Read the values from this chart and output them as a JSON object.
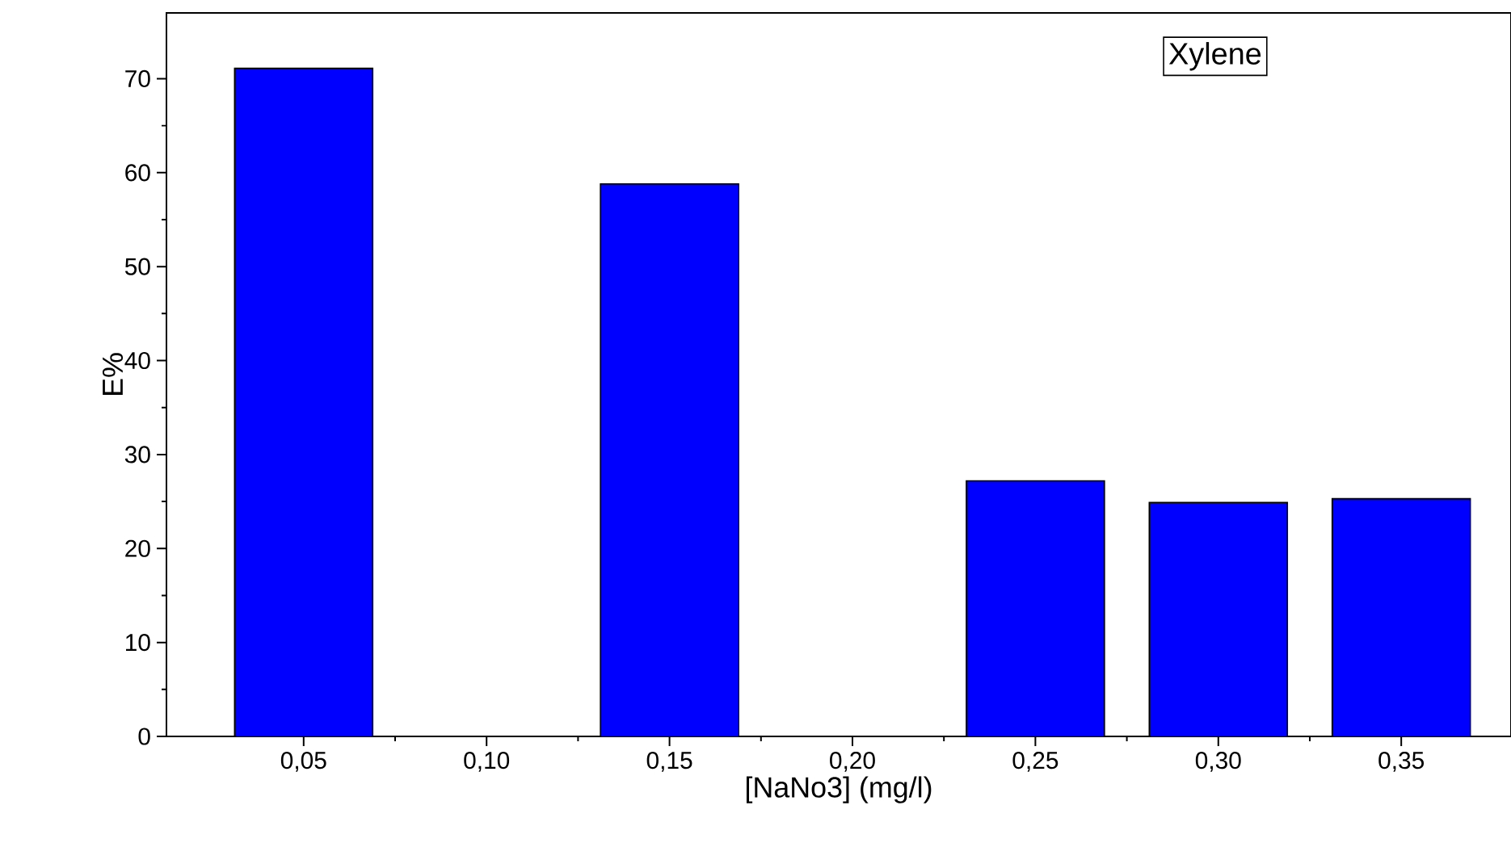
{
  "chart_data": {
    "type": "bar",
    "categories": [
      "0,05",
      "0,10",
      "0,15",
      "0,20",
      "0,25",
      "0,30",
      "0,35"
    ],
    "values": [
      71.1,
      null,
      58.8,
      null,
      27.2,
      24.9,
      25.3
    ],
    "color": "#0000ff",
    "xlabel": "[NaNo3] (mg/l)",
    "ylabel": "E%",
    "ylim": [
      0,
      77
    ],
    "yticks": [
      0,
      10,
      20,
      30,
      40,
      50,
      60,
      70
    ],
    "annotations": [
      "Xylene"
    ]
  }
}
